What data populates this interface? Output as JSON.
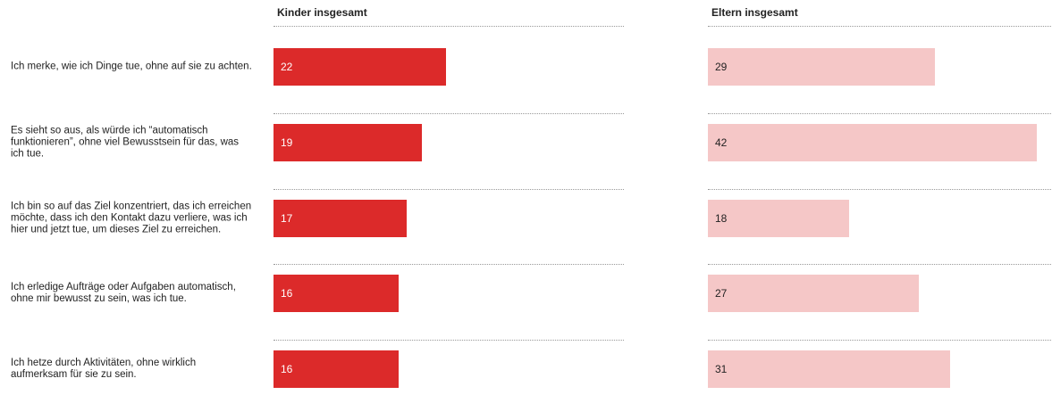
{
  "chart_data": {
    "type": "bar",
    "orientation": "horizontal",
    "categories": [
      "Ich merke, wie ich Dinge tue, ohne auf sie zu achten.",
      "Es sieht so aus, als würde ich “automatisch funktionieren”, ohne viel Bewusstsein für das, was ich tue.",
      "Ich bin so auf das Ziel konzentriert, das ich erreichen möchte, dass ich den Kontakt dazu verliere, was ich hier und jetzt tue, um dieses Ziel zu erreichen.",
      "Ich erledige Aufträge oder Aufgaben automatisch, ohne mir bewusst zu sein, was ich tue.",
      "Ich hetze durch Aktivitäten, ohne wirklich aufmerksam für sie zu sein."
    ],
    "series": [
      {
        "name": "Kinder insgesamt",
        "color": "#dc2a2a",
        "values": [
          22,
          19,
          17,
          16,
          16
        ]
      },
      {
        "name": "Eltern insgesamt",
        "color": "#f5c7c7",
        "values": [
          29,
          42,
          18,
          27,
          31
        ]
      }
    ]
  }
}
